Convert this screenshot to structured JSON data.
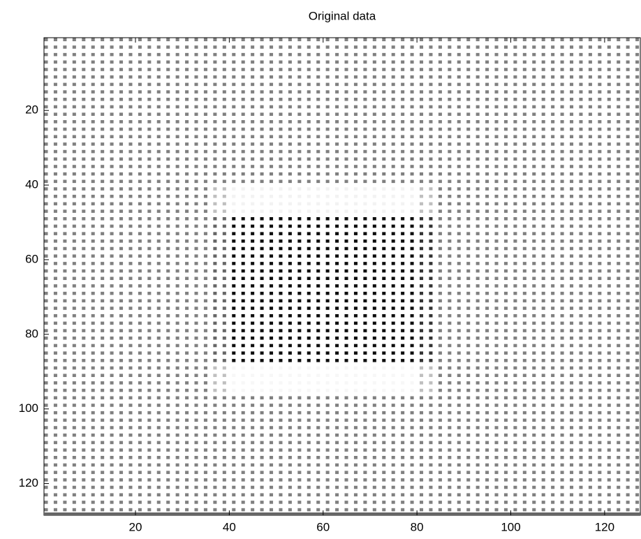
{
  "chart_data": {
    "type": "image",
    "title": "Original data",
    "xlim": [
      0.5,
      128.5
    ],
    "ylim": [
      0.5,
      128.5
    ],
    "y_reversed": true,
    "xticks": [
      20,
      40,
      60,
      80,
      100,
      120
    ],
    "yticks": [
      20,
      40,
      60,
      80,
      100,
      120
    ],
    "x_edges": [
      0.5,
      36.5,
      40.5,
      80.5,
      84.5,
      128.5
    ],
    "y_edges": [
      0.5,
      39.5,
      47.5,
      88.5,
      96.5,
      128.5
    ],
    "z": [
      [
        0.5,
        0.5,
        0.5,
        0.5,
        0.5
      ],
      [
        0.5,
        0.75,
        0.95,
        0.75,
        0.5
      ],
      [
        0.5,
        0.4,
        0.05,
        0.2,
        0.5
      ],
      [
        0.5,
        0.75,
        0.97,
        0.75,
        0.5
      ],
      [
        0.5,
        0.5,
        0.5,
        0.5,
        0.5
      ]
    ]
  }
}
